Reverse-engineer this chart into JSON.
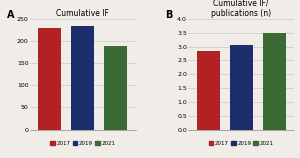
{
  "panel_a": {
    "title": "Cumulative IF",
    "label": "A",
    "values": [
      230,
      235,
      188
    ],
    "colors": [
      "#b22222",
      "#1c2e6b",
      "#3a6b35"
    ],
    "ylim": [
      0,
      250
    ],
    "yticks": [
      0,
      50,
      100,
      150,
      200,
      250
    ]
  },
  "panel_b": {
    "title": "Cumulative IF/\npublications (n)",
    "label": "B",
    "values": [
      2.85,
      3.05,
      3.5
    ],
    "colors": [
      "#b22222",
      "#1c2e6b",
      "#3a6b35"
    ],
    "ylim": [
      0,
      4
    ],
    "yticks": [
      0,
      0.5,
      1,
      1.5,
      2,
      2.5,
      3,
      3.5,
      4
    ]
  },
  "legend_labels": [
    "2017",
    "2019",
    "2021"
  ],
  "legend_colors": [
    "#b22222",
    "#1c2e6b",
    "#3a6b35"
  ],
  "background_color": "#f0ece8",
  "bar_width": 0.7
}
